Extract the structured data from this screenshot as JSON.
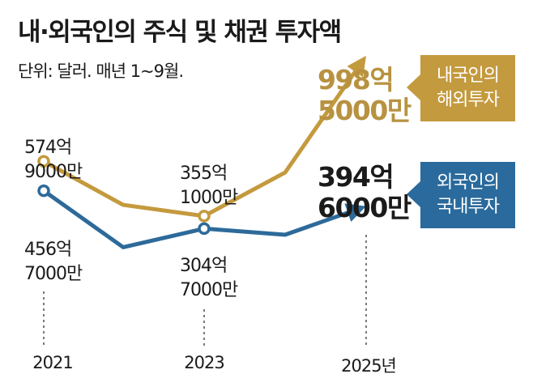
{
  "title": "내·외국인의 주식 및 채권 투자액",
  "subtitle": "단위: 달러. 매년 1~9월.",
  "colors": {
    "domestic": "#c49a3e",
    "foreign": "#2d6a9a",
    "domestic_text": "#b89240",
    "foreign_callout": "#2a6a9c"
  },
  "callouts": {
    "domestic": [
      "내국인의",
      "해외투자"
    ],
    "foreign": [
      "외국인의",
      "국내투자"
    ]
  },
  "labels": {
    "domestic_2021": [
      "574억",
      "9000만"
    ],
    "domestic_2023": [
      "355억",
      "1000만"
    ],
    "domestic_2025": [
      "998억",
      "5000만"
    ],
    "foreign_2021": [
      "456억",
      "7000만"
    ],
    "foreign_2023": [
      "304억",
      "7000만"
    ],
    "foreign_2025": [
      "394억",
      "6000만"
    ]
  },
  "chart_data": {
    "type": "line",
    "title": "내·외국인의 주식 및 채권 투자액",
    "subtitle": "단위: 달러. 매년 1~9월.",
    "unit": "억 달러",
    "x": [
      "2021",
      "2022",
      "2023",
      "2024",
      "2025"
    ],
    "tick_labels": [
      "2021",
      "2023",
      "2025년"
    ],
    "series": [
      {
        "name": "내국인의 해외투자",
        "values": [
          574.9,
          400,
          355.1,
          530,
          998.5
        ]
      },
      {
        "name": "외국인의 국내투자",
        "values": [
          456.7,
          230,
          304.7,
          280,
          394.6
        ]
      }
    ],
    "ylim": [
      150,
      800
    ],
    "grid": false,
    "legend": "right"
  }
}
